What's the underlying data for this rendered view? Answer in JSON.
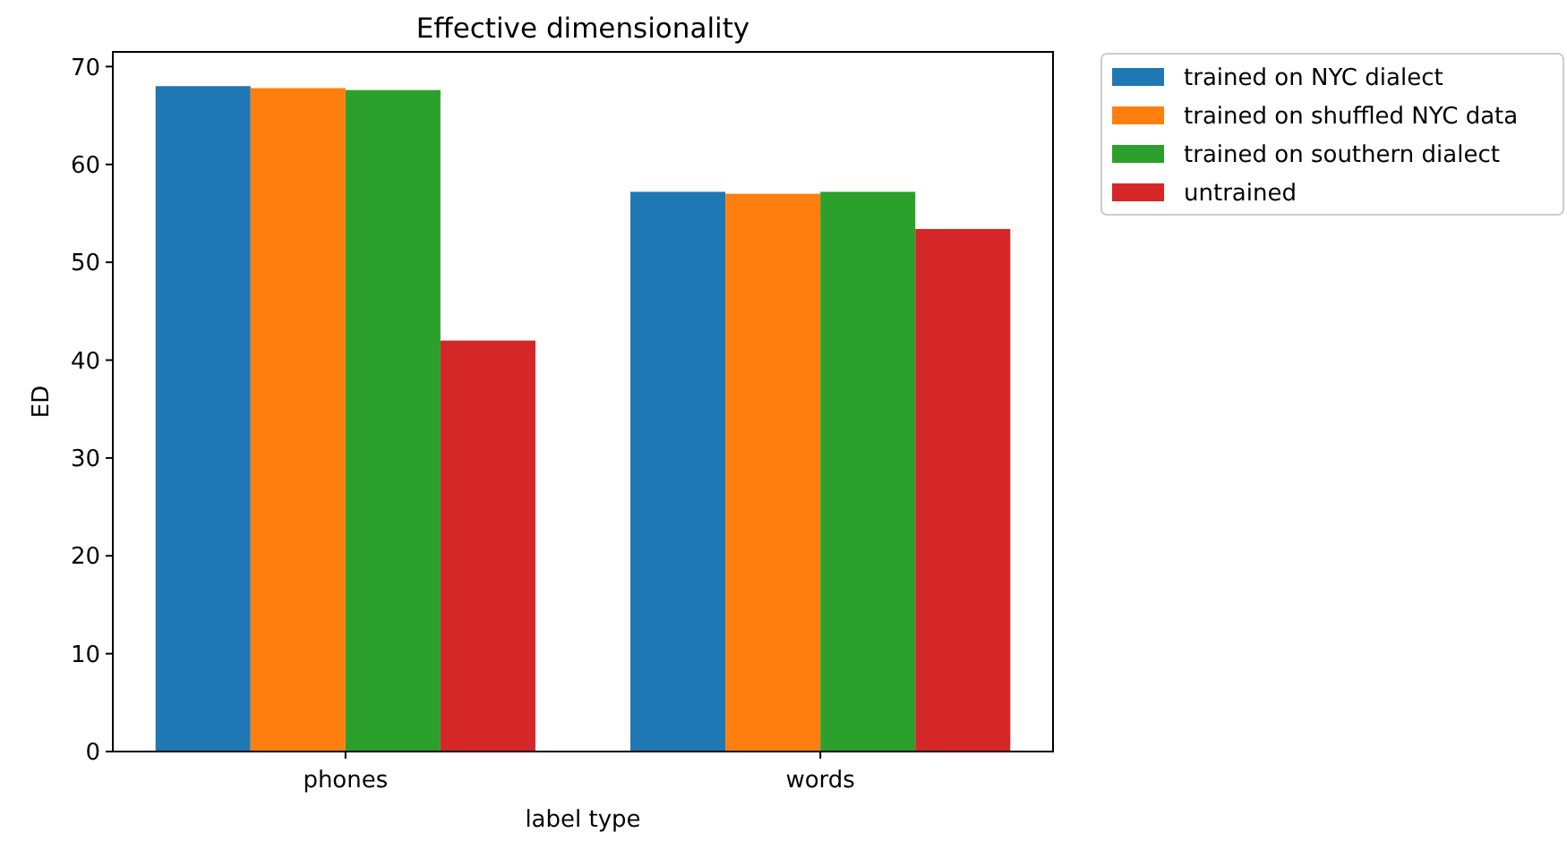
{
  "chart_data": {
    "type": "bar",
    "title": "Effective dimensionality",
    "xlabel": "label type",
    "ylabel": "ED",
    "categories": [
      "phones",
      "words"
    ],
    "series": [
      {
        "name": "trained on NYC dialect",
        "color": "#1f77b4",
        "values": [
          68.0,
          57.2
        ]
      },
      {
        "name": "trained on shuffled NYC data",
        "color": "#ff7f0e",
        "values": [
          67.8,
          57.0
        ]
      },
      {
        "name": "trained on southern dialect",
        "color": "#2ca02c",
        "values": [
          67.6,
          57.2
        ]
      },
      {
        "name": "untrained",
        "color": "#d62728",
        "values": [
          42.0,
          53.4
        ]
      }
    ],
    "ylim": [
      0,
      71.5
    ],
    "yticks": [
      0,
      10,
      20,
      30,
      40,
      50,
      60,
      70
    ],
    "grid": false,
    "legend": "top right"
  }
}
